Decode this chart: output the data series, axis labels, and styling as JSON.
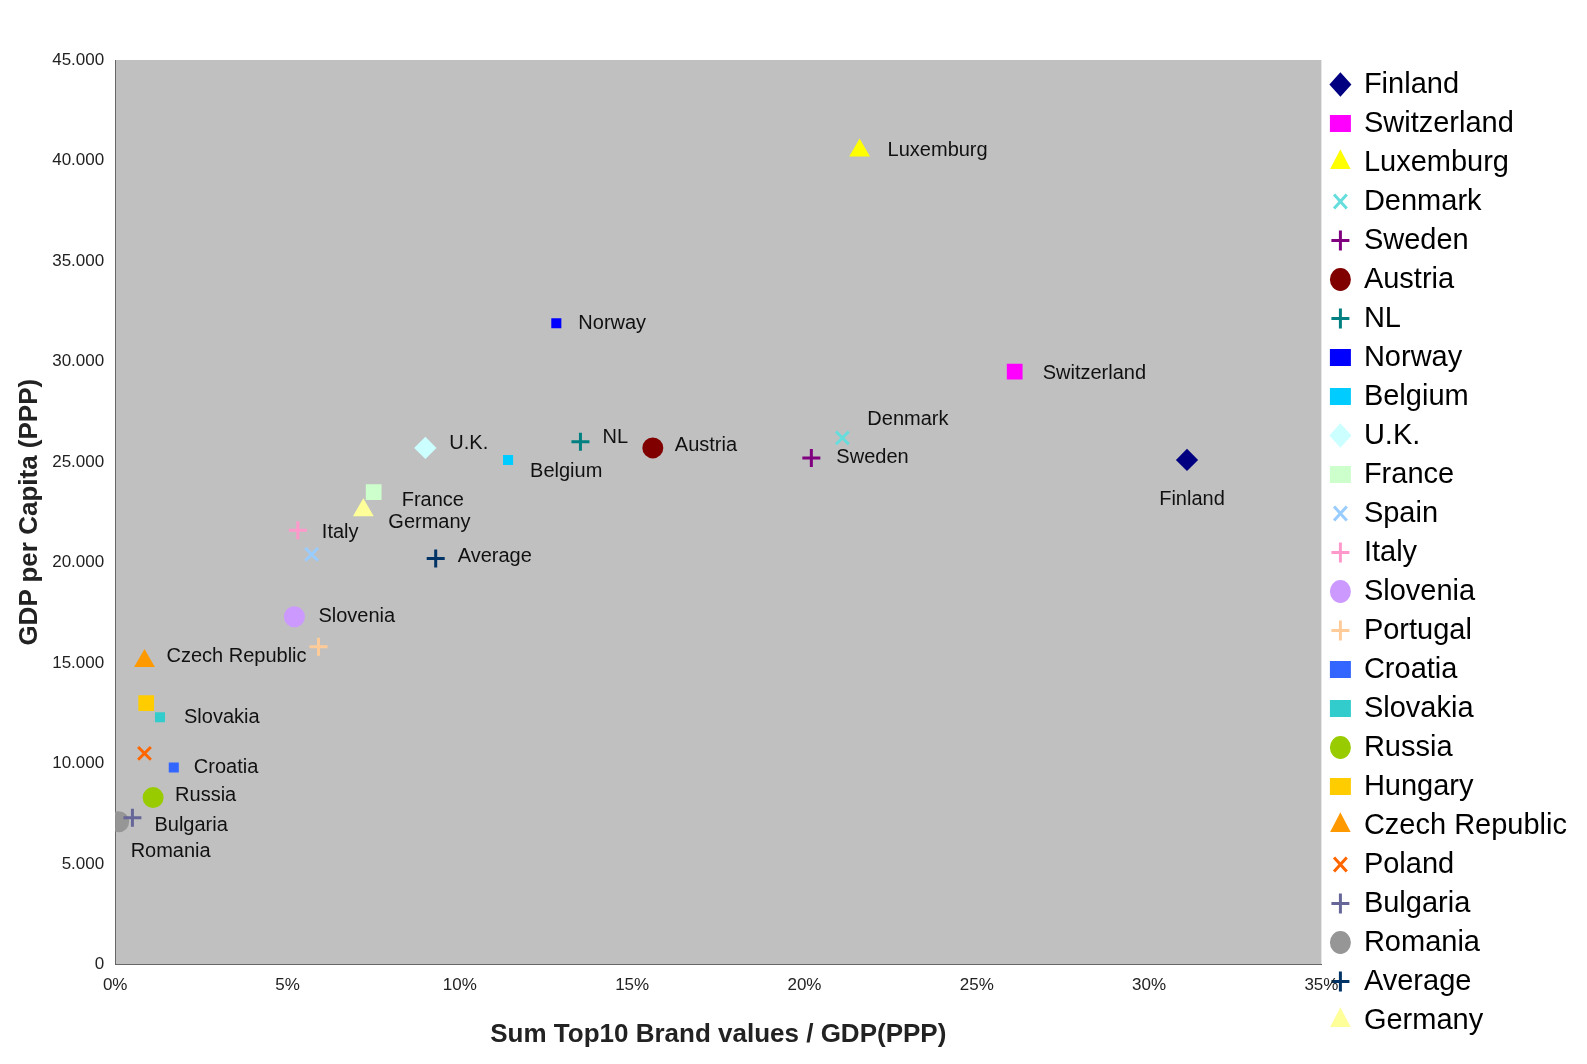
{
  "chart_data": {
    "type": "scatter",
    "xlabel": "Sum Top10 Brand values / GDP(PPP)",
    "ylabel": "GDP per Capita (PPP)",
    "xlim": [
      0,
      35
    ],
    "xticks": [
      {
        "value": 0,
        "label": "0%"
      },
      {
        "value": 5,
        "label": "5%"
      },
      {
        "value": 10,
        "label": "10%"
      },
      {
        "value": 15,
        "label": "15%"
      },
      {
        "value": 20,
        "label": "20%"
      },
      {
        "value": 25,
        "label": "25%"
      },
      {
        "value": 30,
        "label": "30%"
      },
      {
        "value": 35,
        "label": "35%"
      }
    ],
    "ylim": [
      0,
      45000
    ],
    "yticks": [
      {
        "value": 0,
        "label": "0"
      },
      {
        "value": 5000,
        "label": "5.000"
      },
      {
        "value": 10000,
        "label": "10.000"
      },
      {
        "value": 15000,
        "label": "15.000"
      },
      {
        "value": 20000,
        "label": "20.000"
      },
      {
        "value": 25000,
        "label": "25.000"
      },
      {
        "value": 30000,
        "label": "30.000"
      },
      {
        "value": 35000,
        "label": "35.000"
      },
      {
        "value": 40000,
        "label": "40.000"
      },
      {
        "value": 45000,
        "label": "45.000"
      }
    ],
    "grid": false,
    "legend": "right",
    "series": [
      {
        "name": "Finland",
        "color": "#000080",
        "marker": "diamond",
        "x": [
          31.1
        ],
        "values": [
          25100
        ]
      },
      {
        "name": "Switzerland",
        "color": "#ff00ff",
        "marker": "square",
        "x": [
          26.1
        ],
        "values": [
          29500
        ]
      },
      {
        "name": "Luxemburg",
        "color": "#ffff00",
        "marker": "triangle",
        "x": [
          21.6
        ],
        "values": [
          40500
        ]
      },
      {
        "name": "Denmark",
        "color": "#66dddd",
        "marker": "x",
        "x": [
          21.1
        ],
        "values": [
          26200
        ]
      },
      {
        "name": "Sweden",
        "color": "#800080",
        "marker": "cross",
        "x": [
          20.2
        ],
        "values": [
          25200
        ]
      },
      {
        "name": "Austria",
        "color": "#800000",
        "marker": "circle",
        "x": [
          15.6
        ],
        "values": [
          25700
        ]
      },
      {
        "name": "NL",
        "color": "#008080",
        "marker": "cross",
        "x": [
          13.5
        ],
        "values": [
          26000
        ]
      },
      {
        "name": "Norway",
        "color": "#0000ff",
        "x": [
          12.8
        ],
        "values": [
          31900
        ]
      },
      {
        "name": "Belgium",
        "color": "#00ccff",
        "x": [
          11.4
        ],
        "values": [
          25100
        ]
      },
      {
        "name": "U.K.",
        "color": "#ccffff",
        "marker": "diamond",
        "x": [
          9.0
        ],
        "values": [
          25700
        ]
      },
      {
        "name": "France",
        "color": "#ccffcc",
        "marker": "square",
        "x": [
          7.5
        ],
        "values": [
          23500
        ]
      },
      {
        "name": "Spain",
        "color": "#99ccff",
        "marker": "x",
        "x": [
          5.7
        ],
        "values": [
          20400
        ]
      },
      {
        "name": "Italy",
        "color": "#ff99cc",
        "marker": "cross",
        "x": [
          5.3
        ],
        "values": [
          21600
        ]
      },
      {
        "name": "Slovenia",
        "color": "#cc99ff",
        "marker": "circle",
        "x": [
          5.2
        ],
        "values": [
          17300
        ]
      },
      {
        "name": "Portugal",
        "color": "#ffcc99",
        "marker": "cross",
        "x": [
          5.9
        ],
        "values": [
          15800
        ]
      },
      {
        "name": "Croatia",
        "color": "#3366ff",
        "x": [
          1.7
        ],
        "values": [
          9800
        ]
      },
      {
        "name": "Slovakia",
        "color": "#33cccc",
        "x": [
          1.3
        ],
        "values": [
          12300
        ]
      },
      {
        "name": "Russia",
        "color": "#99cc00",
        "marker": "circle",
        "x": [
          1.1
        ],
        "values": [
          8300
        ]
      },
      {
        "name": "Hungary",
        "color": "#ffcc00",
        "marker": "square",
        "x": [
          0.9
        ],
        "values": [
          13000
        ]
      },
      {
        "name": "Czech Republic",
        "color": "#ff9900",
        "marker": "triangle",
        "x": [
          0.85
        ],
        "values": [
          15100
        ]
      },
      {
        "name": "Poland",
        "color": "#ff6600",
        "marker": "x",
        "x": [
          0.85
        ],
        "values": [
          10500
        ]
      },
      {
        "name": "Bulgaria",
        "color": "#666699",
        "marker": "cross",
        "x": [
          0.5
        ],
        "values": [
          7300
        ]
      },
      {
        "name": "Romania",
        "color": "#969696",
        "marker": "circle",
        "x": [
          0.1
        ],
        "values": [
          7100
        ]
      },
      {
        "name": "Average",
        "color": "#003366",
        "marker": "cross",
        "x": [
          9.3
        ],
        "values": [
          20200
        ]
      },
      {
        "name": "Germany",
        "color": "#ffff99",
        "marker": "triangle",
        "x": [
          7.2
        ],
        "values": [
          22600
        ]
      }
    ],
    "annotations": [
      {
        "text": "Finland",
        "x": 31.1,
        "y": 25100
      },
      {
        "text": "Switzerland",
        "x": 26.1,
        "y": 29500
      },
      {
        "text": "Luxemburg",
        "x": 21.6,
        "y": 40500
      },
      {
        "text": "Denmark",
        "x": 21.1,
        "y": 26200
      },
      {
        "text": "Sweden",
        "x": 20.2,
        "y": 25200
      },
      {
        "text": "Austria",
        "x": 15.6,
        "y": 25700
      },
      {
        "text": "NL",
        "x": 13.5,
        "y": 26000
      },
      {
        "text": "Norway",
        "x": 12.8,
        "y": 31900
      },
      {
        "text": "Belgium",
        "x": 11.4,
        "y": 25100
      },
      {
        "text": "U.K.",
        "x": 9.0,
        "y": 25700
      },
      {
        "text": "France",
        "x": 7.5,
        "y": 23500
      },
      {
        "text": "Italy",
        "x": 5.3,
        "y": 21600
      },
      {
        "text": "Slovenia",
        "x": 5.2,
        "y": 17300
      },
      {
        "text": "Croatia",
        "x": 1.7,
        "y": 9800
      },
      {
        "text": "Slovakia",
        "x": 1.3,
        "y": 12300
      },
      {
        "text": "Russia",
        "x": 1.1,
        "y": 8300
      },
      {
        "text": "Czech Republic",
        "x": 0.85,
        "y": 15100
      },
      {
        "text": "Bulgaria",
        "x": 0.5,
        "y": 7300
      },
      {
        "text": "Romania",
        "x": 0.1,
        "y": 7100
      },
      {
        "text": "Average",
        "x": 9.3,
        "y": 20200
      },
      {
        "text": "Germany",
        "x": 7.2,
        "y": 22600
      }
    ]
  }
}
